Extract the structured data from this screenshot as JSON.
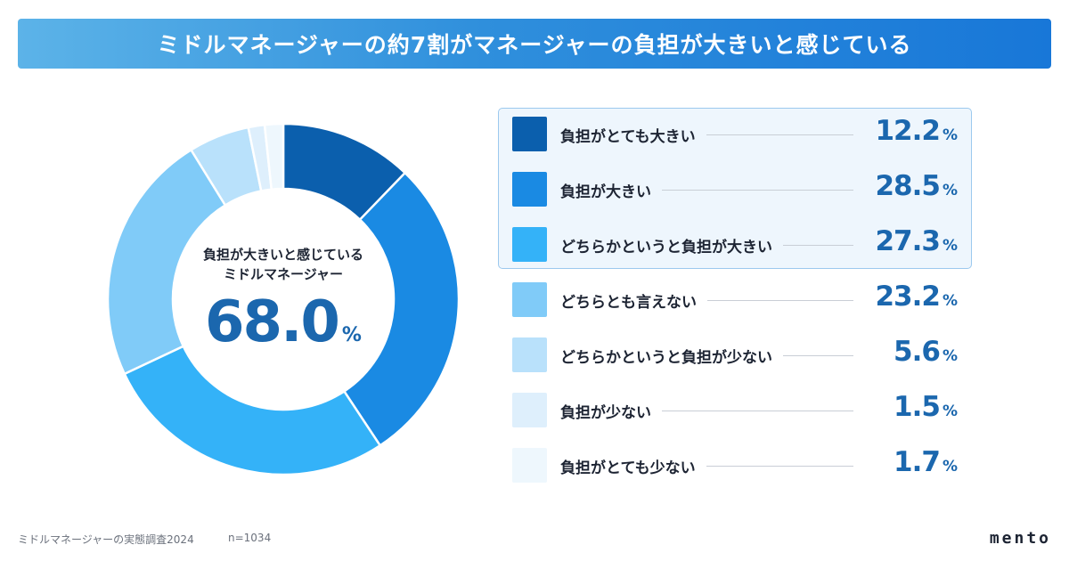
{
  "header": {
    "title": "ミドルマネージャーの約7割がマネージャーの負担が大きいと感じている"
  },
  "center": {
    "label_line1": "負担が大きいと感じている",
    "label_line2": "ミドルマネージャー",
    "value": "68.0",
    "unit": "%"
  },
  "chart_data": {
    "type": "pie",
    "title": "ミドルマネージャーの約7割がマネージャーの負担が大きいと感じている",
    "unit": "%",
    "categories": [
      "負担がとても大きい",
      "負担が大きい",
      "どちらかというと負担が大きい",
      "どちらとも言えない",
      "どちらかというと負担が少ない",
      "負担が少ない",
      "負担がとても少ない"
    ],
    "values": [
      12.2,
      28.5,
      27.3,
      23.2,
      5.6,
      1.5,
      1.7
    ],
    "colors": [
      "#0b5fad",
      "#1a8ae3",
      "#34b2f8",
      "#80cbf8",
      "#b9e1fb",
      "#deeffc",
      "#eef7fd"
    ],
    "start_angle_deg": 0,
    "direction": "clockwise",
    "highlighted_categories": [
      "負担がとても大きい",
      "負担が大きい",
      "どちらかというと負担が大きい"
    ],
    "legend_position": "right"
  },
  "footer": {
    "source": "ミドルマネージャーの実態調査2024",
    "sample": "n=1034",
    "logo": "mento"
  }
}
